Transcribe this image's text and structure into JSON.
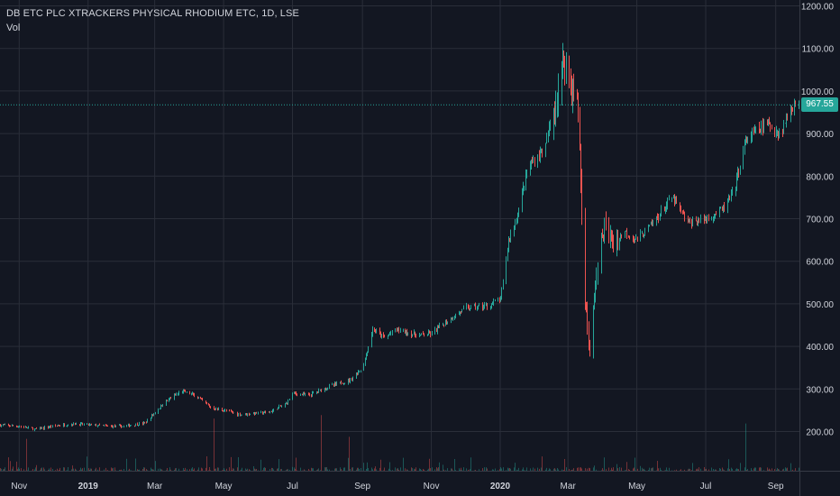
{
  "chart_data": {
    "type": "candlestick",
    "title": "DB ETC PLC XTRACKERS PHYSICAL RHODIUM ETC, 1D, LSE",
    "volume_label": "Vol",
    "last_price_label": "967.55",
    "last_price": 967.55,
    "ylim": [
      110,
      1235
    ],
    "y_ticks": [
      200,
      300,
      400,
      500,
      600,
      700,
      800,
      900,
      1000,
      1100,
      1200
    ],
    "y_tick_labels": [
      "200.00",
      "300.00",
      "400.00",
      "500.00",
      "600.00",
      "700.00",
      "800.00",
      "900.00",
      "1000.00",
      "1100.00",
      "1200.00"
    ],
    "x_tick_labels": [
      {
        "label": "Nov",
        "date": "2018-11-01",
        "bold": false
      },
      {
        "label": "2019",
        "date": "2019-01-01",
        "bold": true
      },
      {
        "label": "Mar",
        "date": "2019-03-01",
        "bold": false
      },
      {
        "label": "May",
        "date": "2019-05-01",
        "bold": false
      },
      {
        "label": "Jul",
        "date": "2019-07-01",
        "bold": false
      },
      {
        "label": "Sep",
        "date": "2019-09-01",
        "bold": false
      },
      {
        "label": "Nov",
        "date": "2019-11-01",
        "bold": false
      },
      {
        "label": "2020",
        "date": "2020-01-01",
        "bold": true
      },
      {
        "label": "Mar",
        "date": "2020-03-01",
        "bold": false
      },
      {
        "label": "May",
        "date": "2020-05-01",
        "bold": false
      },
      {
        "label": "Jul",
        "date": "2020-07-01",
        "bold": false
      },
      {
        "label": "Sep",
        "date": "2020-09-01",
        "bold": false
      }
    ],
    "x_range": [
      "2018-10-15",
      "2020-09-22"
    ],
    "price_path": [
      [
        "2018-10-15",
        215
      ],
      [
        "2018-11-01",
        212
      ],
      [
        "2018-11-15",
        205
      ],
      [
        "2018-12-01",
        213
      ],
      [
        "2018-12-20",
        218
      ],
      [
        "2019-01-15",
        213
      ],
      [
        "2019-02-01",
        212
      ],
      [
        "2019-02-20",
        220
      ],
      [
        "2019-03-10",
        270
      ],
      [
        "2019-03-25",
        295
      ],
      [
        "2019-04-05",
        285
      ],
      [
        "2019-04-20",
        255
      ],
      [
        "2019-05-01",
        250
      ],
      [
        "2019-05-15",
        240
      ],
      [
        "2019-06-10",
        245
      ],
      [
        "2019-06-25",
        265
      ],
      [
        "2019-07-01",
        290
      ],
      [
        "2019-07-15",
        285
      ],
      [
        "2019-08-01",
        305
      ],
      [
        "2019-08-20",
        320
      ],
      [
        "2019-09-01",
        350
      ],
      [
        "2019-09-10",
        440
      ],
      [
        "2019-09-20",
        420
      ],
      [
        "2019-10-01",
        440
      ],
      [
        "2019-10-20",
        425
      ],
      [
        "2019-11-01",
        430
      ],
      [
        "2019-11-15",
        460
      ],
      [
        "2019-12-01",
        490
      ],
      [
        "2019-12-20",
        495
      ],
      [
        "2020-01-01",
        510
      ],
      [
        "2020-01-08",
        650
      ],
      [
        "2020-01-15",
        700
      ],
      [
        "2020-01-25",
        820
      ],
      [
        "2020-02-10",
        870
      ],
      [
        "2020-02-20",
        1000
      ],
      [
        "2020-02-27",
        1080
      ],
      [
        "2020-03-05",
        1000
      ],
      [
        "2020-03-10",
        950
      ],
      [
        "2020-03-15",
        550
      ],
      [
        "2020-03-20",
        380
      ],
      [
        "2020-03-25",
        550
      ],
      [
        "2020-04-01",
        680
      ],
      [
        "2020-04-10",
        640
      ],
      [
        "2020-04-20",
        670
      ],
      [
        "2020-05-01",
        650
      ],
      [
        "2020-05-15",
        690
      ],
      [
        "2020-06-01",
        750
      ],
      [
        "2020-06-15",
        690
      ],
      [
        "2020-07-01",
        700
      ],
      [
        "2020-07-15",
        720
      ],
      [
        "2020-07-25",
        760
      ],
      [
        "2020-08-05",
        880
      ],
      [
        "2020-08-15",
        910
      ],
      [
        "2020-08-25",
        920
      ],
      [
        "2020-09-05",
        900
      ],
      [
        "2020-09-15",
        967
      ]
    ],
    "colors": {
      "background": "#131722",
      "grid": "#2a2e39",
      "up": "#26a69a",
      "down": "#ef5350",
      "axis_text": "#d1d4dc",
      "last_price": "#26a69a"
    },
    "grid": true
  }
}
